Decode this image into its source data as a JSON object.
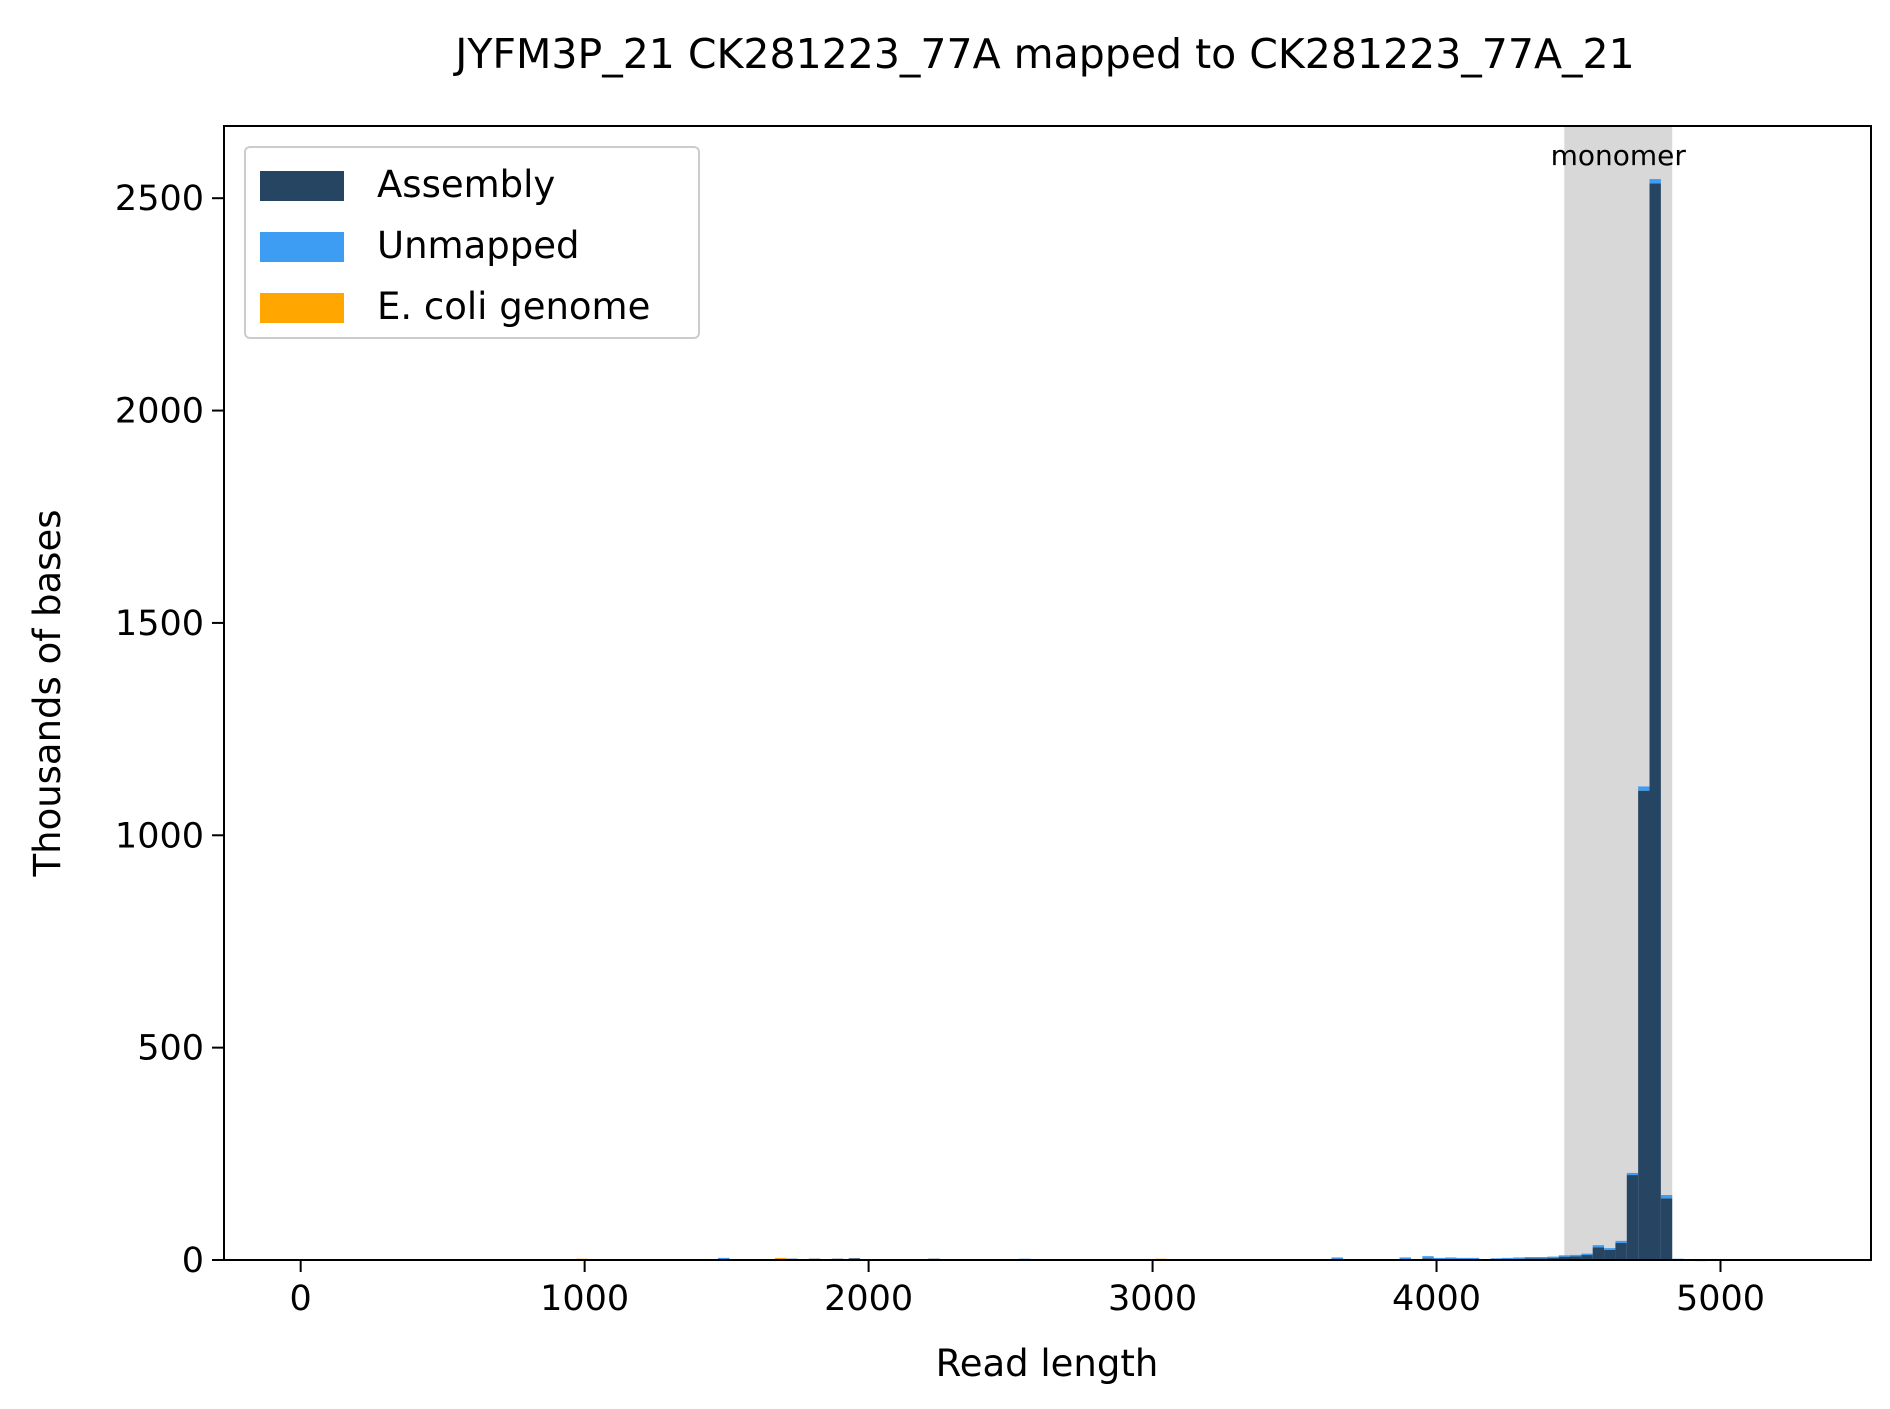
{
  "chart_data": {
    "type": "bar",
    "title": "JYFM3P_21 CK281223_77A mapped to CK281223_77A_21",
    "xlabel": "Read length",
    "ylabel": "Thousands of bases",
    "xlim": [
      -270,
      5530
    ],
    "ylim": [
      0,
      2670
    ],
    "xticks": [
      0,
      1000,
      2000,
      3000,
      4000,
      5000
    ],
    "yticks": [
      0,
      500,
      1000,
      1500,
      2000,
      2500
    ],
    "grid": false,
    "legend_position": "upper-left",
    "bin_width": 40,
    "stacked": true,
    "series": [
      {
        "name": "Assembly",
        "color": "#264562"
      },
      {
        "name": "Unmapped",
        "color": "#3d9df3"
      },
      {
        "name": "E. coli genome",
        "color": "#ffa600"
      }
    ],
    "bins": [
      {
        "x": 990,
        "values": [
          0,
          0,
          3
        ]
      },
      {
        "x": 1490,
        "values": [
          4,
          1,
          0
        ]
      },
      {
        "x": 1690,
        "values": [
          3,
          0,
          2
        ]
      },
      {
        "x": 1730,
        "values": [
          3,
          0,
          0
        ]
      },
      {
        "x": 1810,
        "values": [
          3,
          0,
          0
        ]
      },
      {
        "x": 1890,
        "values": [
          3,
          0,
          0
        ]
      },
      {
        "x": 1950,
        "values": [
          4,
          0,
          0
        ]
      },
      {
        "x": 2230,
        "values": [
          3,
          0,
          0
        ]
      },
      {
        "x": 2550,
        "values": [
          0,
          3,
          0
        ]
      },
      {
        "x": 3030,
        "values": [
          0,
          0,
          3
        ]
      },
      {
        "x": 3650,
        "values": [
          5,
          1,
          0
        ]
      },
      {
        "x": 3890,
        "values": [
          5,
          1,
          0
        ]
      },
      {
        "x": 3970,
        "values": [
          4,
          5,
          0
        ]
      },
      {
        "x": 4010,
        "values": [
          2,
          3,
          0
        ]
      },
      {
        "x": 4050,
        "values": [
          4,
          2,
          0
        ]
      },
      {
        "x": 4090,
        "values": [
          4,
          1,
          0
        ]
      },
      {
        "x": 4130,
        "values": [
          4,
          1,
          0
        ]
      },
      {
        "x": 4210,
        "values": [
          3,
          1,
          0
        ]
      },
      {
        "x": 4250,
        "values": [
          4,
          1,
          0
        ]
      },
      {
        "x": 4290,
        "values": [
          4,
          2,
          0
        ]
      },
      {
        "x": 4330,
        "values": [
          5,
          2,
          0
        ]
      },
      {
        "x": 4370,
        "values": [
          4,
          3,
          0
        ]
      },
      {
        "x": 4410,
        "values": [
          6,
          2,
          0
        ]
      },
      {
        "x": 4450,
        "values": [
          8,
          3,
          0
        ]
      },
      {
        "x": 4490,
        "values": [
          9,
          3,
          0
        ]
      },
      {
        "x": 4530,
        "values": [
          12,
          3,
          0
        ]
      },
      {
        "x": 4570,
        "values": [
          30,
          5,
          0
        ]
      },
      {
        "x": 4610,
        "values": [
          24,
          4,
          0
        ]
      },
      {
        "x": 4650,
        "values": [
          40,
          5,
          0
        ]
      },
      {
        "x": 4690,
        "values": [
          200,
          5,
          0
        ]
      },
      {
        "x": 4730,
        "values": [
          1105,
          10,
          0
        ]
      },
      {
        "x": 4770,
        "values": [
          2535,
          10,
          0
        ]
      },
      {
        "x": 4810,
        "values": [
          145,
          8,
          0
        ]
      },
      {
        "x": 4850,
        "values": [
          2,
          1,
          0
        ]
      },
      {
        "x": 4890,
        "values": [
          2,
          0,
          0
        ]
      },
      {
        "x": 4930,
        "values": [
          1,
          0,
          0
        ]
      }
    ],
    "region": {
      "label": "monomer",
      "x": [
        4450,
        4830
      ],
      "color": "#d8d8d8"
    }
  }
}
